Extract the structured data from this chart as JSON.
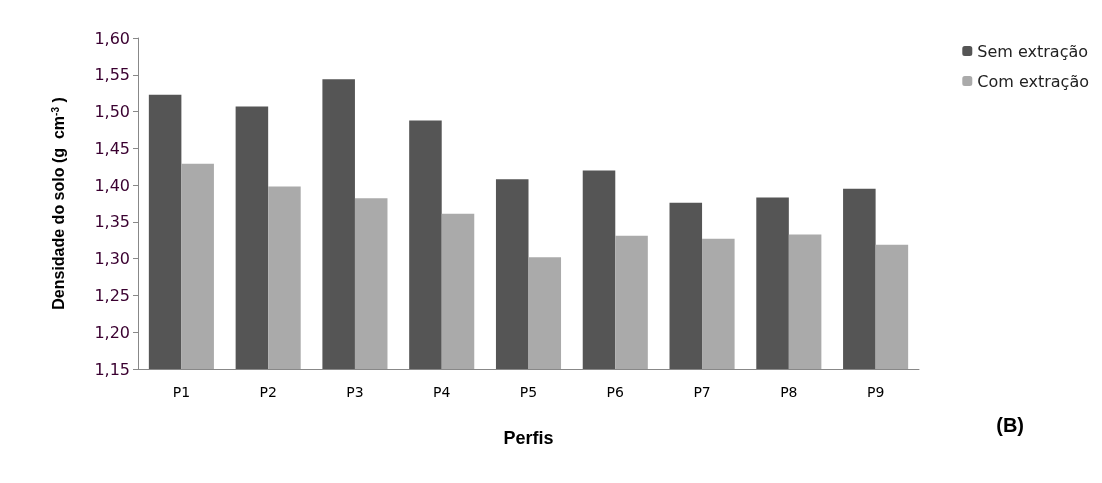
{
  "chart_data": {
    "type": "bar",
    "categories": [
      "P1",
      "P2",
      "P3",
      "P4",
      "P5",
      "P6",
      "P7",
      "P8",
      "P9"
    ],
    "series": [
      {
        "name": "Sem extração",
        "color": "#555555",
        "values": [
          1.523,
          1.507,
          1.544,
          1.488,
          1.408,
          1.42,
          1.376,
          1.383,
          1.395
        ]
      },
      {
        "name": "Com extração",
        "color": "#aaaaaa",
        "values": [
          1.429,
          1.398,
          1.382,
          1.361,
          1.302,
          1.331,
          1.327,
          1.333,
          1.319
        ]
      }
    ],
    "xlabel": "Perfis",
    "ylabel": "Densidade do solo (g  cm$^{-3}$ )",
    "annotations": [
      "(B)"
    ],
    "ylim": [
      1.15,
      1.6
    ],
    "yticks": [
      {
        "value": 1.15,
        "label": "1,15"
      },
      {
        "value": 1.2,
        "label": "1,20"
      },
      {
        "value": 1.25,
        "label": "1,25"
      },
      {
        "value": 1.3,
        "label": "1,30"
      },
      {
        "value": 1.35,
        "label": "1,35"
      },
      {
        "value": 1.4,
        "label": "1,40"
      },
      {
        "value": 1.45,
        "label": "1,45"
      },
      {
        "value": 1.5,
        "label": "1,50"
      },
      {
        "value": 1.55,
        "label": "1,55"
      },
      {
        "value": 1.6,
        "label": "1,60"
      }
    ],
    "grid": false,
    "legend": "top right"
  }
}
